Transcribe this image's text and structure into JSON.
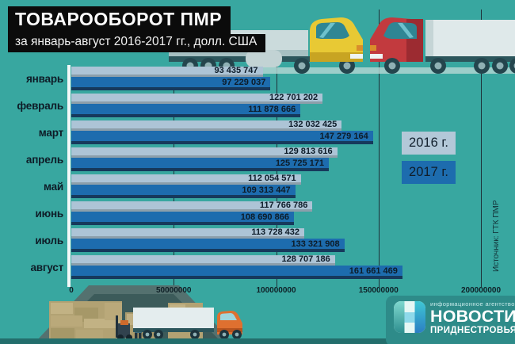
{
  "header": {
    "title": "ТОВАРООБОРОТ ПМР",
    "subtitle": "за январь-август 2016-2017 гг., долл. США"
  },
  "legend": {
    "year2016": "2016 г.",
    "year2017": "2017 г."
  },
  "source": "Источник: ГТК ПМР",
  "logo": {
    "tagline": "информационное агентство",
    "line1": "НОВОСТИ",
    "line2": "ПРИДНЕСТРОВЬЯ"
  },
  "colors": {
    "background": "#38a7a0",
    "bar_2016": "#adc4d6",
    "bar_2016_edge": "#8c9fab",
    "bar_2017": "#1d6cae",
    "bar_2017_shadow": "#16395c",
    "title_background": "#0b0b0b",
    "gridline": "#1e3139",
    "logo_band": "#2e8b89"
  },
  "chart_data": {
    "type": "bar",
    "orientation": "horizontal",
    "title": "ТОВАРООБОРОТ ПМР за январь-август 2016-2017 гг., долл. США",
    "xlabel": "долл. США",
    "ylabel": "",
    "categories": [
      "январь",
      "февраль",
      "март",
      "апрель",
      "май",
      "июнь",
      "июль",
      "август"
    ],
    "series": [
      {
        "name": "2016 г.",
        "color": "#adc4d6",
        "values": [
          93435747,
          122701202,
          132032425,
          129813616,
          112054571,
          117766786,
          113728432,
          128707186
        ]
      },
      {
        "name": "2017 г.",
        "color": "#1d6cae",
        "values": [
          97229037,
          111878666,
          147279164,
          125725171,
          109313447,
          108690866,
          133321908,
          161661469
        ]
      }
    ],
    "xlim": [
      0,
      200000000
    ],
    "xticks": [
      0,
      50000000,
      100000000,
      150000000,
      200000000
    ],
    "xtick_labels": [
      "0",
      "50000000",
      "100000000",
      "150000000",
      "200000000"
    ],
    "grid": "vertical lines at 50M steps",
    "legend_position": "right",
    "value_labels": "inside bar end",
    "source": "ГТК ПМР"
  }
}
